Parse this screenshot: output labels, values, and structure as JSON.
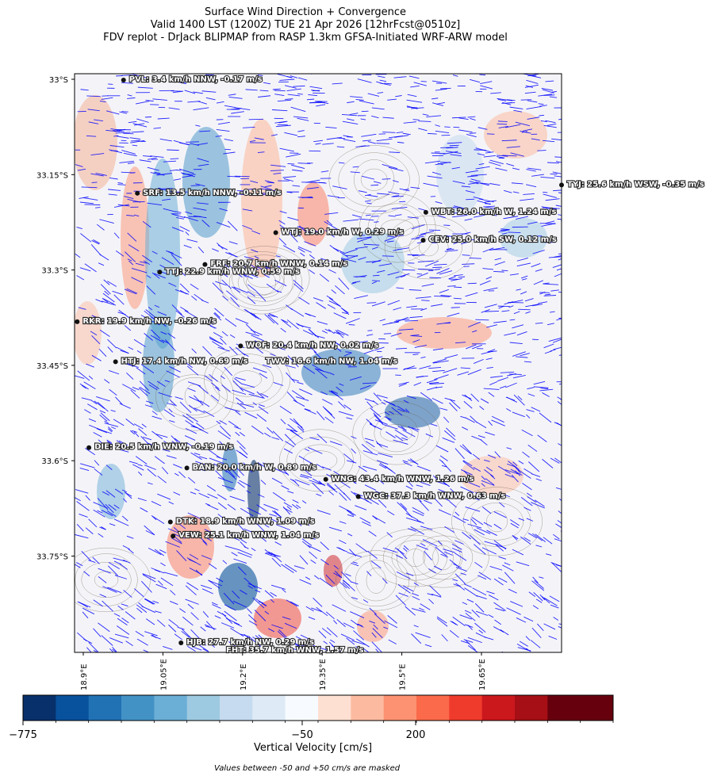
{
  "header": {
    "title": "Surface Wind Direction + Convergence",
    "subtitle": "Valid 1400 LST (1200Z) TUE 21 Apr 2026 [12hrFcst@0510z]",
    "source": "FDV replot - DrJack BLIPMAP from RASP 1.3km GFSA-Initiated WRF-ARW model"
  },
  "chart_data": {
    "type": "map",
    "lat_ticks": [
      "33°S",
      "33.15°S",
      "33.3°S",
      "33.45°S",
      "33.6°S",
      "33.75°S"
    ],
    "lon_ticks": [
      "18.9°E",
      "19.05°E",
      "19.2°E",
      "19.35°E",
      "19.5°E",
      "19.65°E"
    ],
    "lat_range": [
      -33.9,
      -32.99
    ],
    "lon_range": [
      18.885,
      19.8
    ],
    "stations": [
      {
        "code": "PVL",
        "label": "PVL: 3.4 km/h NNW, -0.17 m/s",
        "lon": 18.977,
        "lat": -33.0,
        "speed_kmh": 3.4,
        "dir": "NNW",
        "w_ms": -0.17
      },
      {
        "code": "TYJ",
        "label": "TYJ: 25.6 km/h WSW, -0.35 m/s",
        "lon": 19.8,
        "lat": -33.165,
        "speed_kmh": 25.6,
        "dir": "WSW",
        "w_ms": -0.35
      },
      {
        "code": "SRF",
        "label": "SRF: 13.5 km/h NNW, -0.11 m/s",
        "lon": 19.003,
        "lat": -33.178,
        "speed_kmh": 13.5,
        "dir": "NNW",
        "w_ms": -0.11
      },
      {
        "code": "WBT",
        "label": "WBT: 26.0 km/h W, 1.24 m/s",
        "lon": 19.545,
        "lat": -33.208,
        "speed_kmh": 26.0,
        "dir": "W",
        "w_ms": 1.24
      },
      {
        "code": "WTJ",
        "label": "WTJ: 19.0 km/h W, 0.29 m/s",
        "lon": 19.263,
        "lat": -33.24,
        "speed_kmh": 19.0,
        "dir": "W",
        "w_ms": 0.29
      },
      {
        "code": "CEV",
        "label": "CEV: 25.0 km/h SW, 0.12 m/s",
        "lon": 19.54,
        "lat": -33.252,
        "speed_kmh": 25.0,
        "dir": "SW",
        "w_ms": 0.12
      },
      {
        "code": "FRF",
        "label": "FRF: 20.7 km/h WNW, 0.14 m/s",
        "lon": 19.13,
        "lat": -33.29,
        "speed_kmh": 20.7,
        "dir": "WNW",
        "w_ms": 0.14
      },
      {
        "code": "TTJ",
        "label": "TTJ: 22.9 km/h WNW, 0.59 m/s",
        "lon": 19.045,
        "lat": -33.302,
        "speed_kmh": 22.9,
        "dir": "WNW",
        "w_ms": 0.59
      },
      {
        "code": "RKR",
        "label": "RKR: 19.9 km/h NW, -0.26 m/s",
        "lon": 18.89,
        "lat": -33.38,
        "speed_kmh": 19.9,
        "dir": "NW",
        "w_ms": -0.26
      },
      {
        "code": "WOF",
        "label": "WOF: 20.4 km/h NW, 0.02 m/s",
        "lon": 19.197,
        "lat": -33.418,
        "speed_kmh": 20.4,
        "dir": "NW",
        "w_ms": 0.02
      },
      {
        "code": "HTJ",
        "label": "HTJ: 17.4 km/h NW, 0.69 m/s",
        "lon": 18.962,
        "lat": -33.443,
        "speed_kmh": 17.4,
        "dir": "NW",
        "w_ms": 0.69
      },
      {
        "code": "TWV",
        "label": "TWV: 16.6 km/h NW, 1.04 m/s",
        "lon": null,
        "lat": null,
        "speed_kmh": 16.6,
        "dir": "NW",
        "w_ms": 1.04
      },
      {
        "code": "DIE",
        "label": "DIE: 20.5 km/h WNW, -0.19 m/s",
        "lon": 18.912,
        "lat": -33.578,
        "speed_kmh": 20.5,
        "dir": "WNW",
        "w_ms": -0.19
      },
      {
        "code": "BAN",
        "label": "BAN: 20.0 km/h W, 0.89 m/s",
        "lon": 19.096,
        "lat": -33.61,
        "speed_kmh": 20.0,
        "dir": "W",
        "w_ms": 0.89
      },
      {
        "code": "WNG",
        "label": "WNG: 43.4 km/h WNW, 1.26 m/s",
        "lon": 19.357,
        "lat": -33.628,
        "speed_kmh": 43.4,
        "dir": "WNW",
        "w_ms": 1.26
      },
      {
        "code": "WGC",
        "label": "WGC: 37.3 km/h WNW, 0.63 m/s",
        "lon": 19.418,
        "lat": -33.655,
        "speed_kmh": 37.3,
        "dir": "WNW",
        "w_ms": 0.63
      },
      {
        "code": "DTK",
        "label": "DTK: 18.9 km/h WNW, 1.09 m/s",
        "lon": 19.065,
        "lat": -33.695,
        "speed_kmh": 18.9,
        "dir": "WNW",
        "w_ms": 1.09
      },
      {
        "code": "VEW",
        "label": "VEW: 25.1 km/h WNW, 1.04 m/s",
        "lon": 19.07,
        "lat": -33.717,
        "speed_kmh": 25.1,
        "dir": "WNW",
        "w_ms": 1.04
      },
      {
        "code": "HJB",
        "label": "HJB: 27.7 km/h NW, 0.29 m/s",
        "lon": 19.085,
        "lat": -33.885,
        "speed_kmh": 27.7,
        "dir": "NW",
        "w_ms": 0.29
      },
      {
        "code": "FHT",
        "label": "FHT: 35.7 km/h WNW, 1.57 m/s",
        "lon": null,
        "lat": null,
        "speed_kmh": 35.7,
        "dir": "WNW",
        "w_ms": 1.57
      }
    ],
    "colorbar": {
      "label": "Vertical Velocity [cm/s]",
      "tick_labels": [
        "−775",
        "−50",
        "200"
      ],
      "colors": [
        "#08306b",
        "#08519c",
        "#2171b5",
        "#4292c6",
        "#6baed6",
        "#9ecae1",
        "#c6dbef",
        "#deebf7",
        "#f7fbff",
        "#fee0d2",
        "#fcbba1",
        "#fc9272",
        "#fb6a4a",
        "#ef3b2c",
        "#cb181d",
        "#a50f15",
        "#67000d",
        "#67000d"
      ],
      "note": "Values between -50 and +50 cm/s are masked"
    },
    "wind_vector_color": "#0000ff",
    "station_dot_color": "#111111"
  }
}
